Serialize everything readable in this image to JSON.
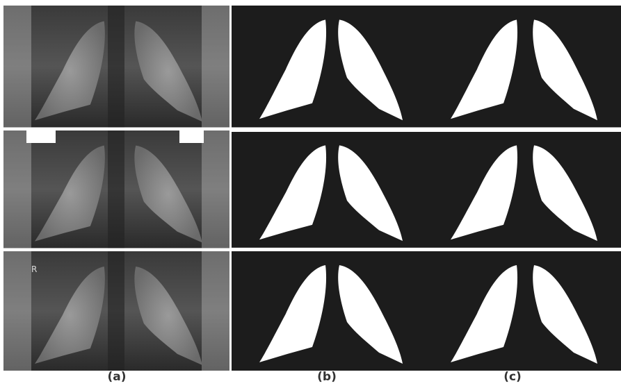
{
  "labels": [
    "(a)",
    "(b)",
    "(c)"
  ],
  "xray_marker": "R"
}
